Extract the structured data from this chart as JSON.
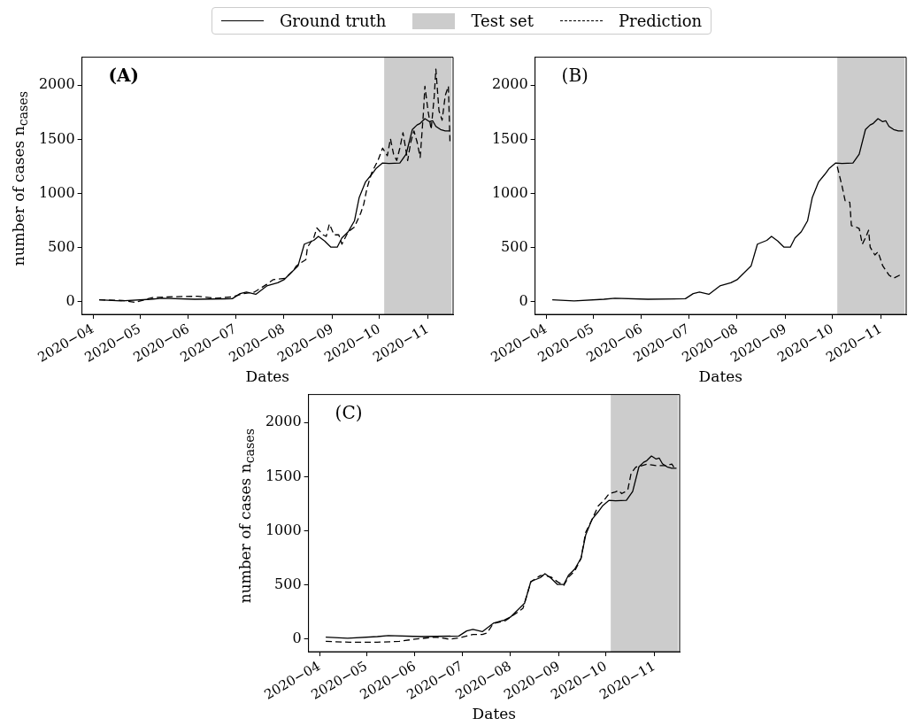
{
  "chart_data": [
    {
      "type": "line",
      "annotations": [
        "(A)"
      ],
      "xlabel": "Dates",
      "ylabel": "number of cases n$_{cases}$",
      "xlim": [
        "2020-03-25",
        "2020-11-17"
      ],
      "ylim": [
        -120,
        2260
      ],
      "xticks": [
        {
          "value": "2020-04",
          "label": "2020−04"
        },
        {
          "value": "2020-05",
          "label": "2020−05"
        },
        {
          "value": "2020-06",
          "label": "2020−06"
        },
        {
          "value": "2020-07",
          "label": "2020−07"
        },
        {
          "value": "2020-08",
          "label": "2020−08"
        },
        {
          "value": "2020-09",
          "label": "2020−09"
        },
        {
          "value": "2020-10",
          "label": "2020−10"
        },
        {
          "value": "2020-11",
          "label": "2020−11"
        }
      ],
      "yticks": [
        0,
        500,
        1000,
        1500,
        2000
      ],
      "legend": "top",
      "bands": [
        {
          "axis": "x",
          "from": "2020-10-04",
          "to": "2020-11-16",
          "label": "Test set",
          "color": "#cccccc"
        }
      ],
      "series": [
        {
          "name": "Ground truth",
          "color": "#000000",
          "line_style": "solid",
          "x": [
            "2020-04-05",
            "2020-04-19",
            "2020-05-08",
            "2020-05-15",
            "2020-06-05",
            "2020-06-29",
            "2020-07-04",
            "2020-07-08",
            "2020-07-14",
            "2020-07-21",
            "2020-07-28",
            "2020-08-01",
            "2020-08-07",
            "2020-08-10",
            "2020-08-14",
            "2020-08-20",
            "2020-08-23",
            "2020-08-27",
            "2020-08-31",
            "2020-09-04",
            "2020-09-07",
            "2020-09-11",
            "2020-09-15",
            "2020-09-18",
            "2020-09-22",
            "2020-09-26",
            "2020-09-29",
            "2020-10-03",
            "2020-10-07",
            "2020-10-14",
            "2020-10-18",
            "2020-10-22",
            "2020-10-25",
            "2020-10-27",
            "2020-10-30",
            "2020-11-02",
            "2020-11-04",
            "2020-11-06",
            "2020-11-09",
            "2020-11-12",
            "2020-11-15"
          ],
          "values": [
            15,
            5,
            20,
            29,
            20,
            25,
            72,
            86,
            66,
            143,
            172,
            201,
            287,
            330,
            530,
            565,
            602,
            559,
            502,
            502,
            588,
            645,
            745,
            960,
            1104,
            1175,
            1233,
            1281,
            1276,
            1281,
            1362,
            1591,
            1633,
            1648,
            1691,
            1663,
            1671,
            1620,
            1591,
            1577,
            1577
          ]
        },
        {
          "name": "Prediction",
          "color": "#000000",
          "line_style": "dashed",
          "x": [
            "2020-04-05",
            "2020-04-20",
            "2020-04-28",
            "2020-05-09",
            "2020-05-22",
            "2020-06-07",
            "2020-06-18",
            "2020-06-29",
            "2020-07-06",
            "2020-07-13",
            "2020-07-21",
            "2020-07-25",
            "2020-08-02",
            "2020-08-07",
            "2020-08-09",
            "2020-08-12",
            "2020-08-15",
            "2020-08-16",
            "2020-08-20",
            "2020-08-22",
            "2020-08-26",
            "2020-08-28",
            "2020-08-30",
            "2020-09-02",
            "2020-09-05",
            "2020-09-07",
            "2020-09-11",
            "2020-09-15",
            "2020-09-19",
            "2020-09-21",
            "2020-09-23",
            "2020-09-26",
            "2020-09-30",
            "2020-10-03",
            "2020-10-06",
            "2020-10-08",
            "2020-10-10",
            "2020-10-12",
            "2020-10-14",
            "2020-10-16",
            "2020-10-18",
            "2020-10-19",
            "2020-10-21",
            "2020-10-23",
            "2020-10-25",
            "2020-10-27",
            "2020-10-29",
            "2020-10-30",
            "2020-11-01",
            "2020-11-03",
            "2020-11-05",
            "2020-11-06",
            "2020-11-08",
            "2020-11-10",
            "2020-11-12",
            "2020-11-14",
            "2020-11-15"
          ],
          "values": [
            15,
            9,
            -8,
            35,
            43,
            48,
            29,
            43,
            72,
            86,
            158,
            201,
            215,
            287,
            330,
            359,
            387,
            502,
            588,
            680,
            616,
            602,
            717,
            616,
            616,
            530,
            645,
            688,
            817,
            903,
            1046,
            1190,
            1304,
            1419,
            1348,
            1505,
            1362,
            1304,
            1419,
            1562,
            1390,
            1304,
            1476,
            1577,
            1476,
            1333,
            1734,
            1992,
            1763,
            1591,
            1906,
            2150,
            1763,
            1677,
            1906,
            1992,
            1476
          ]
        }
      ]
    },
    {
      "type": "line",
      "annotations": [
        "(B)"
      ],
      "xlabel": "Dates",
      "xlim": [
        "2020-03-25",
        "2020-11-17"
      ],
      "ylim": [
        -120,
        2260
      ],
      "xticks": [
        {
          "value": "2020-04",
          "label": "2020−04"
        },
        {
          "value": "2020-05",
          "label": "2020−05"
        },
        {
          "value": "2020-06",
          "label": "2020−06"
        },
        {
          "value": "2020-07",
          "label": "2020−07"
        },
        {
          "value": "2020-08",
          "label": "2020−08"
        },
        {
          "value": "2020-09",
          "label": "2020−09"
        },
        {
          "value": "2020-10",
          "label": "2020−10"
        },
        {
          "value": "2020-11",
          "label": "2020−11"
        }
      ],
      "yticks": [
        0,
        500,
        1000,
        1500,
        2000
      ],
      "bands": [
        {
          "axis": "x",
          "from": "2020-10-04",
          "to": "2020-11-16",
          "color": "#cccccc"
        }
      ],
      "series": [
        {
          "color": "#000000",
          "line_style": "solid",
          "x": [
            "2020-04-05",
            "2020-04-19",
            "2020-05-08",
            "2020-05-15",
            "2020-06-05",
            "2020-06-29",
            "2020-07-04",
            "2020-07-08",
            "2020-07-14",
            "2020-07-21",
            "2020-07-28",
            "2020-08-01",
            "2020-08-07",
            "2020-08-10",
            "2020-08-14",
            "2020-08-20",
            "2020-08-23",
            "2020-08-27",
            "2020-08-31",
            "2020-09-04",
            "2020-09-07",
            "2020-09-11",
            "2020-09-15",
            "2020-09-18",
            "2020-09-22",
            "2020-09-26",
            "2020-09-29",
            "2020-10-03",
            "2020-10-07",
            "2020-10-14",
            "2020-10-18",
            "2020-10-22",
            "2020-10-25",
            "2020-10-27",
            "2020-10-30",
            "2020-11-02",
            "2020-11-04",
            "2020-11-06",
            "2020-11-09",
            "2020-11-12",
            "2020-11-15"
          ],
          "values": [
            15,
            5,
            20,
            29,
            20,
            25,
            72,
            86,
            66,
            143,
            172,
            201,
            287,
            330,
            530,
            565,
            602,
            559,
            502,
            502,
            588,
            645,
            745,
            960,
            1104,
            1175,
            1233,
            1281,
            1276,
            1281,
            1362,
            1591,
            1633,
            1648,
            1691,
            1663,
            1671,
            1620,
            1591,
            1577,
            1577
          ]
        },
        {
          "color": "#000000",
          "line_style": "dashed",
          "x": [
            "2020-10-04",
            "2020-10-07",
            "2020-10-09",
            "2020-10-12",
            "2020-10-13",
            "2020-10-16",
            "2020-10-18",
            "2020-10-20",
            "2020-10-22",
            "2020-10-24",
            "2020-10-25",
            "2020-10-28",
            "2020-10-30",
            "2020-11-02",
            "2020-11-06",
            "2020-11-09",
            "2020-11-13"
          ],
          "values": [
            1247,
            1070,
            932,
            917,
            702,
            688,
            674,
            530,
            588,
            659,
            502,
            430,
            459,
            330,
            244,
            215,
            244
          ]
        }
      ]
    },
    {
      "type": "line",
      "annotations": [
        "(C)"
      ],
      "xlabel": "Dates",
      "ylabel": "number of cases n$_{cases}$",
      "xlim": [
        "2020-03-25",
        "2020-11-17"
      ],
      "ylim": [
        -120,
        2260
      ],
      "xticks": [
        {
          "value": "2020-04",
          "label": "2020−04"
        },
        {
          "value": "2020-05",
          "label": "2020−05"
        },
        {
          "value": "2020-06",
          "label": "2020−06"
        },
        {
          "value": "2020-07",
          "label": "2020−07"
        },
        {
          "value": "2020-08",
          "label": "2020−08"
        },
        {
          "value": "2020-09",
          "label": "2020−09"
        },
        {
          "value": "2020-10",
          "label": "2020−10"
        },
        {
          "value": "2020-11",
          "label": "2020−11"
        }
      ],
      "yticks": [
        0,
        500,
        1000,
        1500,
        2000
      ],
      "bands": [
        {
          "axis": "x",
          "from": "2020-10-04",
          "to": "2020-11-16",
          "color": "#cccccc"
        }
      ],
      "series": [
        {
          "color": "#000000",
          "line_style": "solid",
          "x": [
            "2020-04-05",
            "2020-04-19",
            "2020-05-08",
            "2020-05-15",
            "2020-06-05",
            "2020-06-29",
            "2020-07-04",
            "2020-07-08",
            "2020-07-14",
            "2020-07-21",
            "2020-07-28",
            "2020-08-01",
            "2020-08-07",
            "2020-08-10",
            "2020-08-14",
            "2020-08-20",
            "2020-08-23",
            "2020-08-27",
            "2020-08-31",
            "2020-09-04",
            "2020-09-07",
            "2020-09-11",
            "2020-09-15",
            "2020-09-18",
            "2020-09-22",
            "2020-09-26",
            "2020-09-29",
            "2020-10-03",
            "2020-10-07",
            "2020-10-14",
            "2020-10-18",
            "2020-10-22",
            "2020-10-25",
            "2020-10-27",
            "2020-10-30",
            "2020-11-02",
            "2020-11-04",
            "2020-11-06",
            "2020-11-09",
            "2020-11-12",
            "2020-11-15"
          ],
          "values": [
            15,
            5,
            20,
            29,
            20,
            25,
            72,
            86,
            66,
            143,
            172,
            201,
            287,
            330,
            530,
            565,
            602,
            559,
            502,
            502,
            588,
            645,
            745,
            960,
            1104,
            1175,
            1233,
            1281,
            1276,
            1281,
            1362,
            1591,
            1633,
            1648,
            1691,
            1663,
            1671,
            1620,
            1591,
            1577,
            1577
          ]
        },
        {
          "color": "#000000",
          "line_style": "dashed",
          "x": [
            "2020-04-05",
            "2020-04-20",
            "2020-05-08",
            "2020-05-22",
            "2020-06-01",
            "2020-06-14",
            "2020-06-23",
            "2020-06-30",
            "2020-07-08",
            "2020-07-14",
            "2020-07-17",
            "2020-07-21",
            "2020-07-29",
            "2020-08-05",
            "2020-08-09",
            "2020-08-14",
            "2020-08-20",
            "2020-08-23",
            "2020-08-27",
            "2020-08-31",
            "2020-09-04",
            "2020-09-07",
            "2020-09-11",
            "2020-09-15",
            "2020-09-18",
            "2020-09-22",
            "2020-09-26",
            "2020-09-30",
            "2020-10-03",
            "2020-10-07",
            "2020-10-09",
            "2020-10-11",
            "2020-10-13",
            "2020-10-15",
            "2020-10-17",
            "2020-10-20",
            "2020-10-24",
            "2020-10-27",
            "2020-11-02",
            "2020-11-08",
            "2020-11-12",
            "2020-11-14"
          ],
          "values": [
            -24,
            -32,
            -32,
            -24,
            -4,
            16,
            -4,
            11,
            40,
            40,
            54,
            140,
            169,
            240,
            283,
            527,
            584,
            584,
            570,
            527,
            493,
            570,
            627,
            742,
            985,
            1100,
            1229,
            1286,
            1343,
            1358,
            1372,
            1343,
            1358,
            1386,
            1530,
            1588,
            1602,
            1616,
            1602,
            1602,
            1616,
            1573
          ]
        }
      ]
    }
  ]
}
